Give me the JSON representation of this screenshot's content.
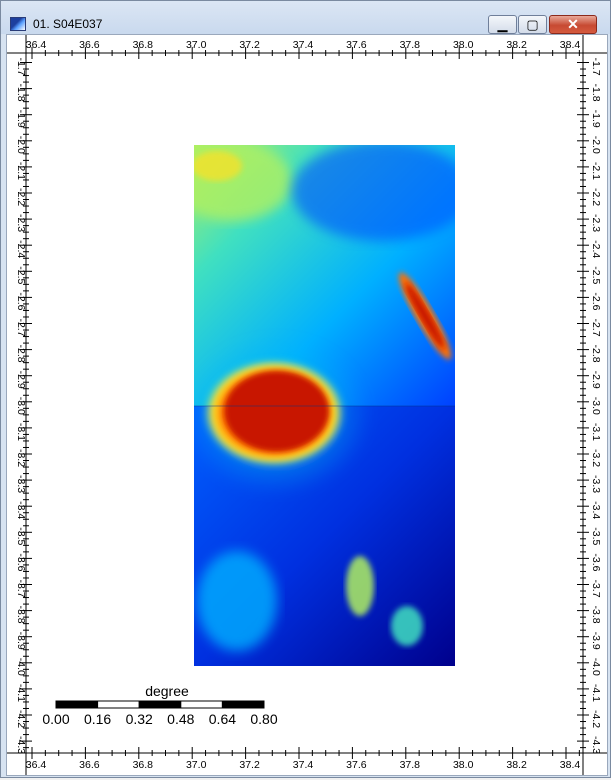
{
  "window": {
    "title": "01. S04E037",
    "minimize_symbol": "▁",
    "maximize_symbol": "▢",
    "close_symbol": "✕"
  },
  "map": {
    "x_ticks": [
      "36.4",
      "36.6",
      "36.8",
      "37.0",
      "37.2",
      "37.4",
      "37.6",
      "37.8",
      "38.0",
      "38.2",
      "38.4"
    ],
    "y_ticks": [
      "-1.7",
      "-1.8",
      "-1.9",
      "-2.0",
      "-2.1",
      "-2.2",
      "-2.3",
      "-2.4",
      "-2.5",
      "-2.6",
      "-2.7",
      "-2.8",
      "-2.9",
      "-3.0",
      "-3.1",
      "-3.2",
      "-3.3",
      "-3.4",
      "-3.5",
      "-3.6",
      "-3.7",
      "-3.8",
      "-3.9",
      "-4.0",
      "-4.1",
      "-4.2",
      "-4.3"
    ],
    "colormap": [
      "#00008c",
      "#0040ff",
      "#00b0ff",
      "#40e0c0",
      "#b0f060",
      "#ffe020",
      "#ff7000",
      "#c81400"
    ]
  },
  "scalebar": {
    "unit": "degree",
    "labels": [
      "0.00",
      "0.16",
      "0.32",
      "0.48",
      "0.64",
      "0.80"
    ]
  }
}
